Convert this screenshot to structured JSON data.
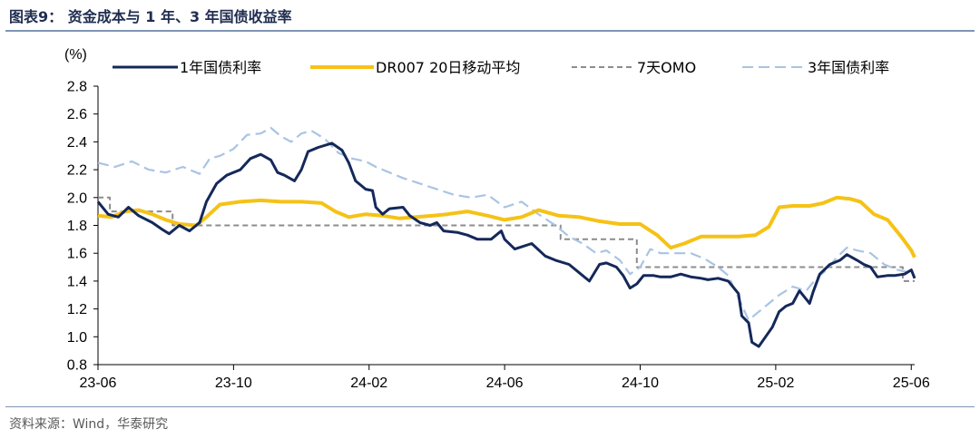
{
  "figure": {
    "title": "图表9：  资金成本与 1 年、3 年国债收益率",
    "source": "资料来源：Wind，华泰研究"
  },
  "chart_data": {
    "type": "line",
    "ylabel": "(%)",
    "ylim": [
      0.8,
      2.8
    ],
    "yticks": [
      0.8,
      1.0,
      1.2,
      1.4,
      1.6,
      1.8,
      2.0,
      2.2,
      2.4,
      2.6,
      2.8
    ],
    "xlim": [
      0,
      24.1
    ],
    "xticks": [
      {
        "value": 0,
        "label": "23-06"
      },
      {
        "value": 4,
        "label": "23-10"
      },
      {
        "value": 8,
        "label": "24-02"
      },
      {
        "value": 12,
        "label": "24-06"
      },
      {
        "value": 16,
        "label": "24-10"
      },
      {
        "value": 20,
        "label": "25-02"
      },
      {
        "value": 24,
        "label": "25-06"
      }
    ],
    "series": [
      {
        "name": "1年国债利率",
        "color": "#14285a",
        "style": "solid",
        "points": [
          [
            0,
            1.97
          ],
          [
            0.3,
            1.88
          ],
          [
            0.6,
            1.86
          ],
          [
            0.9,
            1.93
          ],
          [
            1.2,
            1.87
          ],
          [
            1.6,
            1.82
          ],
          [
            1.9,
            1.77
          ],
          [
            2.1,
            1.74
          ],
          [
            2.4,
            1.8
          ],
          [
            2.7,
            1.76
          ],
          [
            3.0,
            1.82
          ],
          [
            3.2,
            1.97
          ],
          [
            3.5,
            2.1
          ],
          [
            3.8,
            2.16
          ],
          [
            4.2,
            2.2
          ],
          [
            4.5,
            2.28
          ],
          [
            4.8,
            2.31
          ],
          [
            5.1,
            2.27
          ],
          [
            5.3,
            2.18
          ],
          [
            5.5,
            2.16
          ],
          [
            5.8,
            2.12
          ],
          [
            6.0,
            2.2
          ],
          [
            6.2,
            2.33
          ],
          [
            6.5,
            2.36
          ],
          [
            6.9,
            2.39
          ],
          [
            7.2,
            2.34
          ],
          [
            7.4,
            2.25
          ],
          [
            7.6,
            2.12
          ],
          [
            7.9,
            2.06
          ],
          [
            8.1,
            2.05
          ],
          [
            8.2,
            1.93
          ],
          [
            8.4,
            1.88
          ],
          [
            8.6,
            1.92
          ],
          [
            9.0,
            1.93
          ],
          [
            9.2,
            1.87
          ],
          [
            9.5,
            1.82
          ],
          [
            9.8,
            1.8
          ],
          [
            10.0,
            1.82
          ],
          [
            10.2,
            1.76
          ],
          [
            10.6,
            1.75
          ],
          [
            10.9,
            1.73
          ],
          [
            11.2,
            1.7
          ],
          [
            11.6,
            1.7
          ],
          [
            11.9,
            1.76
          ],
          [
            12.0,
            1.7
          ],
          [
            12.3,
            1.63
          ],
          [
            12.8,
            1.67
          ],
          [
            13.2,
            1.58
          ],
          [
            13.5,
            1.55
          ],
          [
            13.9,
            1.52
          ],
          [
            14.2,
            1.46
          ],
          [
            14.5,
            1.4
          ],
          [
            14.8,
            1.52
          ],
          [
            15.0,
            1.53
          ],
          [
            15.3,
            1.5
          ],
          [
            15.5,
            1.44
          ],
          [
            15.7,
            1.35
          ],
          [
            15.9,
            1.38
          ],
          [
            16.1,
            1.44
          ],
          [
            16.4,
            1.44
          ],
          [
            16.6,
            1.43
          ],
          [
            16.9,
            1.43
          ],
          [
            17.2,
            1.45
          ],
          [
            17.5,
            1.43
          ],
          [
            17.8,
            1.42
          ],
          [
            18.0,
            1.41
          ],
          [
            18.3,
            1.42
          ],
          [
            18.6,
            1.4
          ],
          [
            18.9,
            1.31
          ],
          [
            19.0,
            1.15
          ],
          [
            19.2,
            1.1
          ],
          [
            19.3,
            0.96
          ],
          [
            19.5,
            0.93
          ],
          [
            19.7,
            1.0
          ],
          [
            19.9,
            1.07
          ],
          [
            20.1,
            1.18
          ],
          [
            20.3,
            1.22
          ],
          [
            20.5,
            1.24
          ],
          [
            20.7,
            1.33
          ],
          [
            21.0,
            1.24
          ],
          [
            21.1,
            1.32
          ],
          [
            21.3,
            1.45
          ],
          [
            21.6,
            1.52
          ],
          [
            21.9,
            1.55
          ],
          [
            22.1,
            1.59
          ],
          [
            22.4,
            1.55
          ],
          [
            22.6,
            1.52
          ],
          [
            22.8,
            1.5
          ],
          [
            23.0,
            1.43
          ],
          [
            23.3,
            1.44
          ],
          [
            23.5,
            1.44
          ],
          [
            23.8,
            1.45
          ],
          [
            24.0,
            1.48
          ],
          [
            24.1,
            1.42
          ]
        ]
      },
      {
        "name": "DR007 20日移动平均",
        "color": "#f5c216",
        "style": "solid",
        "points": [
          [
            0,
            1.87
          ],
          [
            0.4,
            1.86
          ],
          [
            0.8,
            1.9
          ],
          [
            1.2,
            1.91
          ],
          [
            1.6,
            1.88
          ],
          [
            2.0,
            1.84
          ],
          [
            2.4,
            1.81
          ],
          [
            2.9,
            1.8
          ],
          [
            3.2,
            1.86
          ],
          [
            3.6,
            1.95
          ],
          [
            4.2,
            1.97
          ],
          [
            4.8,
            1.98
          ],
          [
            5.4,
            1.97
          ],
          [
            6.0,
            1.97
          ],
          [
            6.6,
            1.96
          ],
          [
            7.0,
            1.9
          ],
          [
            7.4,
            1.86
          ],
          [
            7.9,
            1.88
          ],
          [
            8.4,
            1.87
          ],
          [
            8.9,
            1.85
          ],
          [
            9.4,
            1.86
          ],
          [
            9.9,
            1.87
          ],
          [
            10.3,
            1.88
          ],
          [
            10.9,
            1.9
          ],
          [
            11.5,
            1.87
          ],
          [
            12.0,
            1.84
          ],
          [
            12.5,
            1.86
          ],
          [
            13.0,
            1.91
          ],
          [
            13.6,
            1.87
          ],
          [
            14.2,
            1.86
          ],
          [
            14.8,
            1.83
          ],
          [
            15.4,
            1.81
          ],
          [
            16.0,
            1.81
          ],
          [
            16.5,
            1.73
          ],
          [
            16.9,
            1.64
          ],
          [
            17.3,
            1.67
          ],
          [
            17.8,
            1.72
          ],
          [
            18.3,
            1.72
          ],
          [
            18.9,
            1.72
          ],
          [
            19.4,
            1.73
          ],
          [
            19.8,
            1.79
          ],
          [
            20.1,
            1.93
          ],
          [
            20.5,
            1.94
          ],
          [
            21.0,
            1.94
          ],
          [
            21.4,
            1.96
          ],
          [
            21.8,
            2.0
          ],
          [
            22.2,
            1.99
          ],
          [
            22.5,
            1.97
          ],
          [
            22.9,
            1.88
          ],
          [
            23.3,
            1.84
          ],
          [
            23.7,
            1.72
          ],
          [
            24.0,
            1.62
          ],
          [
            24.1,
            1.57
          ]
        ]
      },
      {
        "name": "7天OMO",
        "color": "#8c8c8c",
        "style": "dashed",
        "step": true,
        "points": [
          [
            0,
            2.0
          ],
          [
            0.35,
            2.0
          ],
          [
            0.35,
            1.9
          ],
          [
            2.2,
            1.9
          ],
          [
            2.2,
            1.8
          ],
          [
            13.65,
            1.8
          ],
          [
            13.65,
            1.7
          ],
          [
            15.9,
            1.7
          ],
          [
            15.9,
            1.5
          ],
          [
            23.75,
            1.5
          ],
          [
            23.75,
            1.4
          ],
          [
            24.1,
            1.4
          ]
        ]
      },
      {
        "name": "3年国债利率",
        "color": "#a9c4e4",
        "style": "dashed",
        "points": [
          [
            0,
            2.25
          ],
          [
            0.5,
            2.22
          ],
          [
            1.0,
            2.26
          ],
          [
            1.5,
            2.2
          ],
          [
            2.0,
            2.18
          ],
          [
            2.5,
            2.22
          ],
          [
            3.0,
            2.17
          ],
          [
            3.3,
            2.28
          ],
          [
            3.6,
            2.3
          ],
          [
            4.0,
            2.35
          ],
          [
            4.4,
            2.45
          ],
          [
            4.8,
            2.46
          ],
          [
            5.1,
            2.5
          ],
          [
            5.4,
            2.44
          ],
          [
            5.7,
            2.4
          ],
          [
            6.0,
            2.46
          ],
          [
            6.3,
            2.48
          ],
          [
            6.7,
            2.42
          ],
          [
            7.1,
            2.32
          ],
          [
            7.5,
            2.28
          ],
          [
            7.9,
            2.26
          ],
          [
            8.2,
            2.22
          ],
          [
            8.6,
            2.18
          ],
          [
            9.0,
            2.14
          ],
          [
            9.5,
            2.1
          ],
          [
            10.0,
            2.06
          ],
          [
            10.5,
            2.02
          ],
          [
            11.0,
            2.0
          ],
          [
            11.5,
            2.02
          ],
          [
            12.0,
            1.93
          ],
          [
            12.5,
            1.97
          ],
          [
            13.0,
            1.88
          ],
          [
            13.5,
            1.8
          ],
          [
            13.9,
            1.72
          ],
          [
            14.3,
            1.67
          ],
          [
            14.7,
            1.6
          ],
          [
            15.0,
            1.62
          ],
          [
            15.4,
            1.55
          ],
          [
            15.7,
            1.45
          ],
          [
            16.0,
            1.5
          ],
          [
            16.3,
            1.63
          ],
          [
            16.6,
            1.6
          ],
          [
            17.0,
            1.6
          ],
          [
            17.5,
            1.6
          ],
          [
            17.9,
            1.56
          ],
          [
            18.3,
            1.5
          ],
          [
            18.6,
            1.44
          ],
          [
            18.9,
            1.28
          ],
          [
            19.2,
            1.12
          ],
          [
            19.5,
            1.18
          ],
          [
            19.8,
            1.24
          ],
          [
            20.1,
            1.3
          ],
          [
            20.5,
            1.36
          ],
          [
            20.9,
            1.33
          ],
          [
            21.2,
            1.42
          ],
          [
            21.5,
            1.48
          ],
          [
            21.8,
            1.57
          ],
          [
            22.1,
            1.64
          ],
          [
            22.4,
            1.62
          ],
          [
            22.8,
            1.6
          ],
          [
            23.2,
            1.52
          ],
          [
            23.6,
            1.48
          ],
          [
            24.0,
            1.46
          ]
        ]
      }
    ]
  }
}
